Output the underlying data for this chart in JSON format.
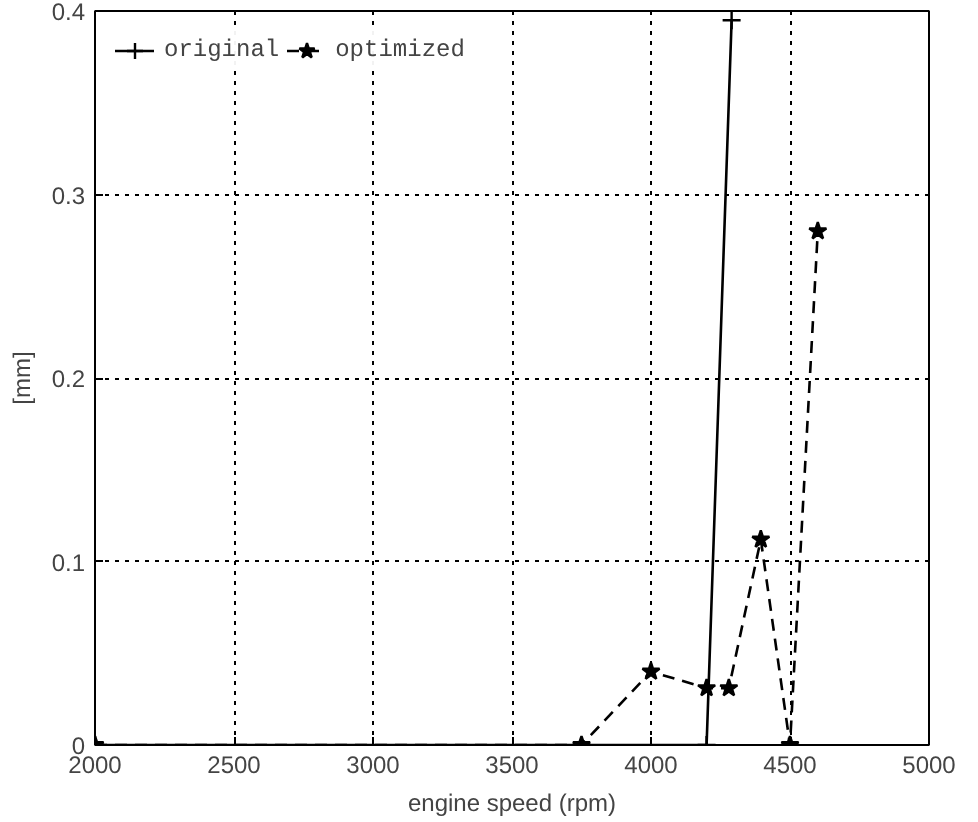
{
  "chart_data": {
    "type": "line",
    "xlabel": "engine speed (rpm)",
    "ylabel": "[mm]",
    "xlim": [
      2000,
      5000
    ],
    "xticks": [
      2000,
      2500,
      3000,
      3500,
      4000,
      4500,
      5000
    ],
    "ylim": [
      0,
      0.4
    ],
    "yticks": [
      0,
      0.1,
      0.2,
      0.3,
      0.4
    ],
    "grid": true,
    "legend": "top left",
    "series": [
      {
        "name": "original",
        "color": "#000000",
        "marker": "cross",
        "line_style": "solid",
        "x": [
          2000,
          4200,
          4290
        ],
        "values": [
          0,
          0,
          0.395
        ]
      },
      {
        "name": "optimized",
        "color": "#000000",
        "marker": "star",
        "line_style": "dashed",
        "x": [
          2000,
          3750,
          4000,
          4200,
          4280,
          4395,
          4500,
          4600
        ],
        "values": [
          0,
          0,
          0.04,
          0.031,
          0.031,
          0.112,
          0,
          0.28
        ]
      }
    ]
  }
}
